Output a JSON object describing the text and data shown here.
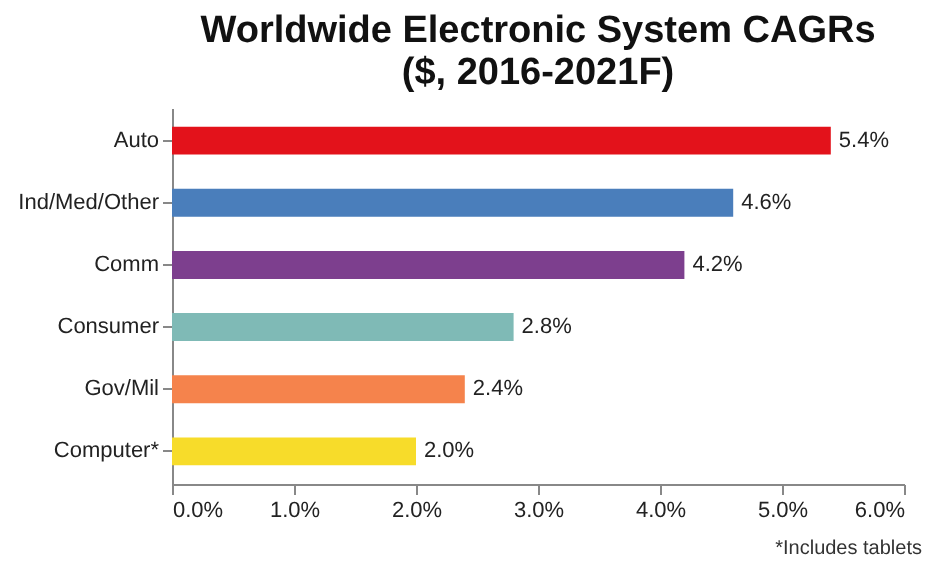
{
  "chart_data": {
    "type": "bar",
    "orientation": "horizontal",
    "title": "Worldwide Electronic System CAGRs",
    "subtitle": "($, 2016-2021F)",
    "categories": [
      "Auto",
      "Ind/Med/Other",
      "Comm",
      "Consumer",
      "Gov/Mil",
      "Computer*"
    ],
    "values": [
      5.4,
      4.6,
      4.2,
      2.8,
      2.4,
      2.0
    ],
    "colors": [
      "#e3121b",
      "#4a7ebb",
      "#7d3f8e",
      "#7fbab6",
      "#f5834c",
      "#f7dc2a"
    ],
    "value_labels": [
      "5.4%",
      "4.6%",
      "4.2%",
      "2.8%",
      "2.4%",
      "2.0%"
    ],
    "xlim": [
      0,
      6
    ],
    "xticks": [
      {
        "value": 0,
        "label": "0.0%"
      },
      {
        "value": 1,
        "label": "1.0%"
      },
      {
        "value": 2,
        "label": "2.0%"
      },
      {
        "value": 3,
        "label": "3.0%"
      },
      {
        "value": 4,
        "label": "4.0%"
      },
      {
        "value": 5,
        "label": "5.0%"
      },
      {
        "value": 6,
        "label": "6.0%"
      }
    ],
    "annotations": [
      "*Includes tablets"
    ]
  }
}
